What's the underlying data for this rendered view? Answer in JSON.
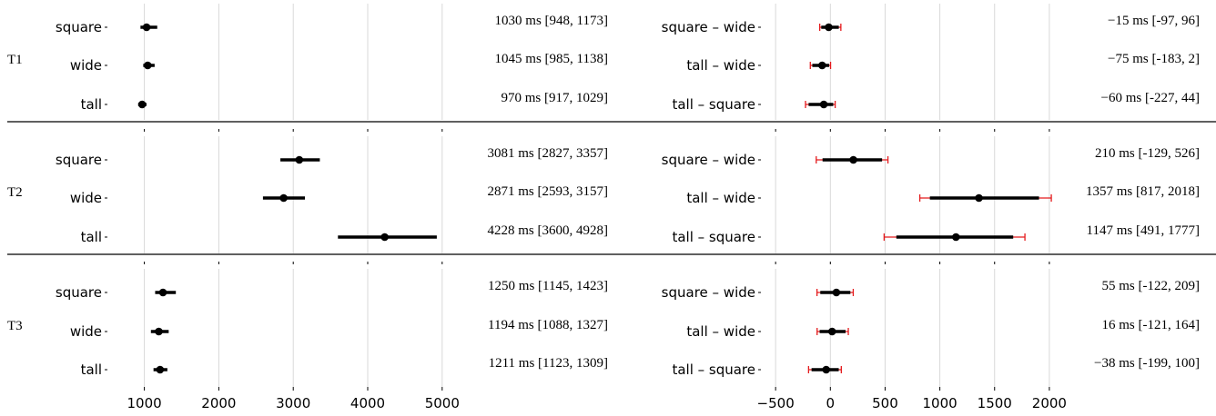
{
  "chart_data": [
    {
      "type": "dot-interval",
      "xticks": [
        1000,
        2000,
        3000,
        4000,
        5000
      ],
      "xlim": [
        0,
        5000
      ],
      "grid": true,
      "groups": [
        {
          "label": "T1",
          "rows": [
            {
              "category": "square",
              "value": 1030,
              "lo": 948,
              "hi": 1173,
              "annotation": "1030 ms [948, 1173]"
            },
            {
              "category": "wide",
              "value": 1045,
              "lo": 985,
              "hi": 1138,
              "annotation": "1045 ms [985, 1138]"
            },
            {
              "category": "tall",
              "value": 970,
              "lo": 917,
              "hi": 1029,
              "annotation": "970 ms [917, 1029]"
            }
          ]
        },
        {
          "label": "T2",
          "rows": [
            {
              "category": "square",
              "value": 3081,
              "lo": 2827,
              "hi": 3357,
              "annotation": "3081 ms [2827, 3357]"
            },
            {
              "category": "wide",
              "value": 2871,
              "lo": 2593,
              "hi": 3157,
              "annotation": "2871 ms [2593, 3157]"
            },
            {
              "category": "tall",
              "value": 4228,
              "lo": 3600,
              "hi": 4928,
              "annotation": "4228 ms [3600, 4928]"
            }
          ]
        },
        {
          "label": "T3",
          "rows": [
            {
              "category": "square",
              "value": 1250,
              "lo": 1145,
              "hi": 1423,
              "annotation": "1250 ms [1145, 1423]"
            },
            {
              "category": "wide",
              "value": 1194,
              "lo": 1088,
              "hi": 1327,
              "annotation": "1194 ms [1088, 1327]"
            },
            {
              "category": "tall",
              "value": 1211,
              "lo": 1123,
              "hi": 1309,
              "annotation": "1211 ms [1123, 1309]"
            }
          ]
        }
      ]
    },
    {
      "type": "dot-interval",
      "xticks": [
        -500,
        0,
        500,
        1000,
        1500,
        2000
      ],
      "xlim": [
        -500,
        2000
      ],
      "grid": true,
      "groups": [
        {
          "label": "T1",
          "rows": [
            {
              "category": "square – wide",
              "value": -15,
              "lo": -97,
              "hi": 96,
              "annotation": "−15 ms [-97, 96]"
            },
            {
              "category": "tall – wide",
              "value": -75,
              "lo": -183,
              "hi": 2,
              "annotation": "−75 ms [-183, 2]"
            },
            {
              "category": "tall – square",
              "value": -60,
              "lo": -227,
              "hi": 44,
              "annotation": "−60 ms [-227, 44]"
            }
          ]
        },
        {
          "label": "T2",
          "rows": [
            {
              "category": "square – wide",
              "value": 210,
              "lo": -129,
              "hi": 526,
              "annotation": "210 ms [-129, 526]"
            },
            {
              "category": "tall – wide",
              "value": 1357,
              "lo": 817,
              "hi": 2018,
              "annotation": "1357 ms [817, 2018]"
            },
            {
              "category": "tall – square",
              "value": 1147,
              "lo": 491,
              "hi": 1777,
              "annotation": "1147 ms [491, 1777]"
            }
          ]
        },
        {
          "label": "T3",
          "rows": [
            {
              "category": "square – wide",
              "value": 55,
              "lo": -122,
              "hi": 209,
              "annotation": "55 ms [-122, 209]"
            },
            {
              "category": "tall – wide",
              "value": 16,
              "lo": -121,
              "hi": 164,
              "annotation": "16 ms [-121, 164]"
            },
            {
              "category": "tall – square",
              "value": -38,
              "lo": -199,
              "hi": 100,
              "annotation": "−38 ms [-199, 100]"
            }
          ]
        }
      ]
    }
  ],
  "colors": {
    "point": "#000000",
    "interval": "#000000",
    "whisker": "#e41a1c",
    "grid": "#d9d9d9"
  }
}
